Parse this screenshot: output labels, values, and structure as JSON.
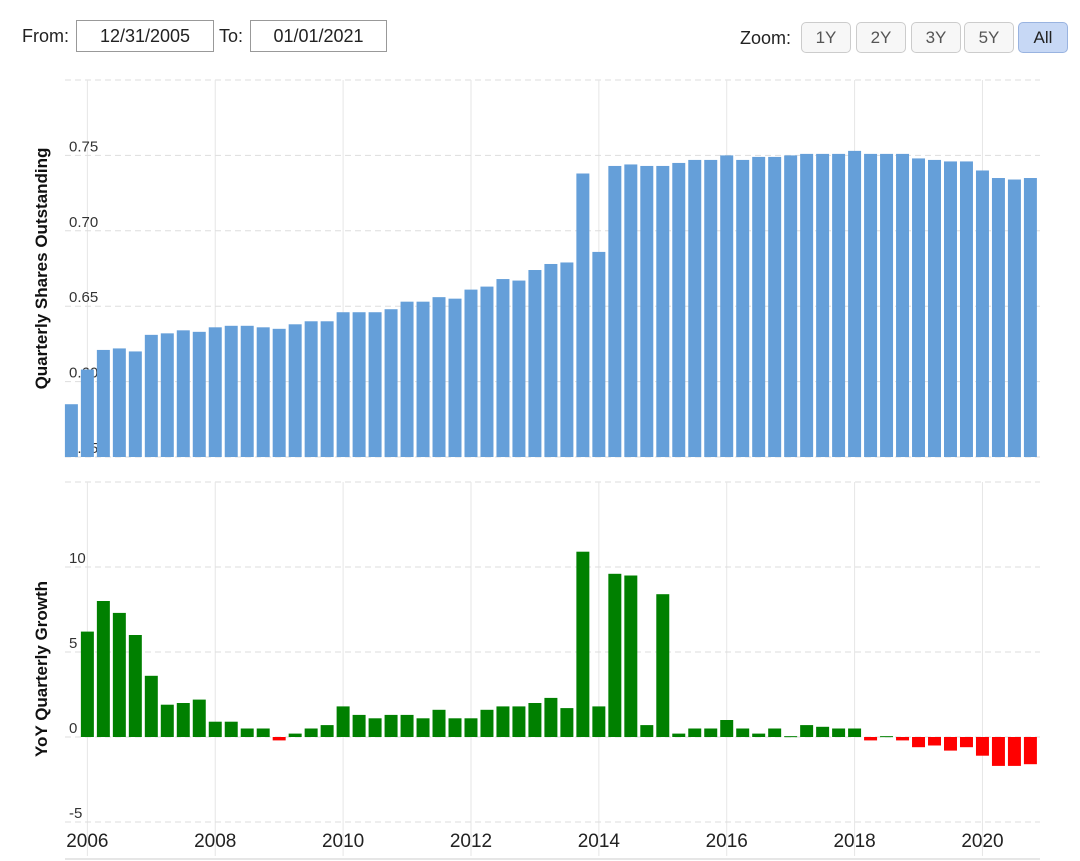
{
  "controls": {
    "from_label": "From:",
    "from_value": "12/31/2005",
    "to_label": "To:",
    "to_value": "01/01/2021",
    "zoom_label": "Zoom:",
    "zoom_buttons": [
      "1Y",
      "2Y",
      "3Y",
      "5Y",
      "All"
    ]
  },
  "chart_data": [
    {
      "type": "bar",
      "y_label": "Quarterly Shares Outstanding",
      "color": "#659fd9",
      "x": [
        2005.75,
        2006,
        2006.25,
        2006.5,
        2006.75,
        2007,
        2007.25,
        2007.5,
        2007.75,
        2008,
        2008.25,
        2008.5,
        2008.75,
        2009,
        2009.25,
        2009.5,
        2009.75,
        2010,
        2010.25,
        2010.5,
        2010.75,
        2011,
        2011.25,
        2011.5,
        2011.75,
        2012,
        2012.25,
        2012.5,
        2012.75,
        2013,
        2013.25,
        2013.5,
        2013.75,
        2014,
        2014.25,
        2014.5,
        2014.75,
        2015,
        2015.25,
        2015.5,
        2015.75,
        2016,
        2016.25,
        2016.5,
        2016.75,
        2017,
        2017.25,
        2017.5,
        2017.75,
        2018,
        2018.25,
        2018.5,
        2018.75,
        2019,
        2019.25,
        2019.5,
        2019.75,
        2020,
        2020.25,
        2020.5,
        2020.75
      ],
      "values": [
        0.585,
        0.608,
        0.621,
        0.622,
        0.62,
        0.631,
        0.632,
        0.634,
        0.633,
        0.636,
        0.637,
        0.637,
        0.636,
        0.635,
        0.638,
        0.64,
        0.64,
        0.646,
        0.646,
        0.646,
        0.648,
        0.653,
        0.653,
        0.656,
        0.655,
        0.661,
        0.663,
        0.668,
        0.667,
        0.674,
        0.678,
        0.679,
        0.738,
        0.686,
        0.743,
        0.744,
        0.743,
        0.743,
        0.745,
        0.747,
        0.747,
        0.75,
        0.747,
        0.749,
        0.749,
        0.75,
        0.751,
        0.751,
        0.751,
        0.753,
        0.751,
        0.751,
        0.751,
        0.748,
        0.747,
        0.746,
        0.746,
        0.74,
        0.735,
        0.734,
        0.735
      ],
      "xlim": [
        2005.65,
        2020.9
      ],
      "xticks": [
        2006,
        2008,
        2010,
        2012,
        2014,
        2016,
        2018,
        2020
      ],
      "ylim": [
        0.55,
        0.8
      ],
      "yticks": [
        0.55,
        {
          "value": 0.6,
          "label": "0.60"
        },
        0.65,
        {
          "value": 0.7,
          "label": "0.70"
        },
        0.75
      ],
      "grid": true
    },
    {
      "type": "bar",
      "y_label": "YoY Quarterly Growth",
      "color": "#008000",
      "negative_color": "#ff0000",
      "x": [
        2006,
        2006.25,
        2006.5,
        2006.75,
        2007,
        2007.25,
        2007.5,
        2007.75,
        2008,
        2008.25,
        2008.5,
        2008.75,
        2009,
        2009.25,
        2009.5,
        2009.75,
        2010,
        2010.25,
        2010.5,
        2010.75,
        2011,
        2011.25,
        2011.5,
        2011.75,
        2012,
        2012.25,
        2012.5,
        2012.75,
        2013,
        2013.25,
        2013.5,
        2013.75,
        2014,
        2014.25,
        2014.5,
        2014.75,
        2015,
        2015.25,
        2015.5,
        2015.75,
        2016,
        2016.25,
        2016.5,
        2016.75,
        2017,
        2017.25,
        2017.5,
        2017.75,
        2018,
        2018.25,
        2018.5,
        2018.75,
        2019,
        2019.25,
        2019.5,
        2019.75,
        2020,
        2020.25,
        2020.5,
        2020.75
      ],
      "values": [
        6.2,
        8.0,
        7.3,
        6.0,
        3.6,
        1.9,
        2.0,
        2.2,
        0.9,
        0.9,
        0.5,
        0.5,
        -0.2,
        0.2,
        0.5,
        0.7,
        1.8,
        1.3,
        1.1,
        1.3,
        1.3,
        1.1,
        1.6,
        1.1,
        1.1,
        1.6,
        1.8,
        1.8,
        2.0,
        2.3,
        1.7,
        10.9,
        1.8,
        9.6,
        9.5,
        0.7,
        8.4,
        0.2,
        0.5,
        0.5,
        1.0,
        0.5,
        0.2,
        0.5,
        0.05,
        0.7,
        0.6,
        0.5,
        0.5,
        -0.2,
        0.05,
        -0.2,
        -0.6,
        -0.5,
        -0.8,
        -0.6,
        -1.1,
        -1.7,
        -1.7,
        -1.6
      ],
      "xlim": [
        2005.65,
        2020.9
      ],
      "xticks": [
        2006,
        2008,
        2010,
        2012,
        2014,
        2016,
        2018,
        2020
      ],
      "ylim": [
        -7,
        15
      ],
      "yticks": [
        -5,
        0,
        5,
        10
      ],
      "grid": true
    }
  ]
}
